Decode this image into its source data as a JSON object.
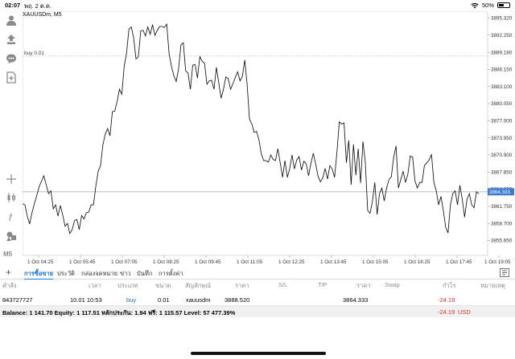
{
  "status": {
    "time": "02:07",
    "date": "พฤ. 2 ต.ค.",
    "battery": "50%",
    "battery_level": 0.5
  },
  "symbol_label": "XAUUSDm, M5",
  "chart_data": {
    "type": "line",
    "y_ticks": [
      "3895.320",
      "3892.250",
      "3889.180",
      "3886.150",
      "3883.100",
      "3880.050",
      "3877.000",
      "3873.950",
      "3870.900",
      "3867.850",
      "3864.800",
      "3861.750",
      "3858.700",
      "3855.650"
    ],
    "ylim": [
      3853.0,
      3896.5
    ],
    "x_ticks": [
      "1 Oct 04:25",
      "1 Oct 05:45",
      "1 Oct 07:05",
      "1 Oct 08:25",
      "1 Oct 09:45",
      "1 Oct 11:05",
      "1 Oct 12:25",
      "1 Oct 13:45",
      "1 Oct 15:05",
      "1 Oct 16:25",
      "1 Oct 17:45",
      "1 Oct 19:05"
    ],
    "entry_line": {
      "label": "buy 0.01",
      "value": 3888.52
    },
    "bid_line": {
      "label": "3864.333",
      "value": 3864.333
    },
    "values": [
      3862.2,
      3862.0,
      3860.0,
      3858.6,
      3860.6,
      3862.2,
      3863.6,
      3865.2,
      3866.2,
      3867.2,
      3865.6,
      3864.0,
      3864.5,
      3861.3,
      3862.0,
      3860.0,
      3861.9,
      3860.2,
      3858.2,
      3858.7,
      3856.9,
      3857.6,
      3859.2,
      3859.4,
      3857.6,
      3860.1,
      3859.5,
      3860.6,
      3860.7,
      3862.0,
      3862.0,
      3865.3,
      3868.0,
      3869.0,
      3872.7,
      3874.6,
      3875.6,
      3874.3,
      3878.6,
      3878.7,
      3880.4,
      3882.6,
      3881.7,
      3886.7,
      3889.0,
      3893.3,
      3893.7,
      3891.8,
      3888.0,
      3888.4,
      3893.0,
      3893.1,
      3892.1,
      3893.7,
      3892.4,
      3894.1,
      3892.2,
      3893.1,
      3893.8,
      3893.8,
      3893.6,
      3894.2,
      3888.9,
      3886.7,
      3885.0,
      3884.0,
      3886.2,
      3890.5,
      3890.9,
      3885.9,
      3885.5,
      3882.6,
      3886.9,
      3887.0,
      3884.6,
      3888.4,
      3887.6,
      3887.2,
      3883.5,
      3884.1,
      3884.2,
      3882.6,
      3886.5,
      3883.8,
      3881.0,
      3882.6,
      3884.8,
      3884.5,
      3882.6,
      3883.6,
      3884.7,
      3885.7,
      3884.1,
      3884.9,
      3887.8,
      3883.5,
      3877.3,
      3876.4,
      3874.9,
      3875.1,
      3873.6,
      3871.1,
      3869.9,
      3869.9,
      3869.6,
      3870.9,
      3870.1,
      3869.9,
      3872.0,
      3869.5,
      3866.9,
      3869.9,
      3866.9,
      3868.4,
      3870.9,
      3868.4,
      3870.0,
      3870.6,
      3868.2,
      3869.8,
      3869.3,
      3867.2,
      3869.4,
      3871.2,
      3869.3,
      3867.1,
      3866.1,
      3866.8,
      3868.5,
      3866.6,
      3869.0,
      3868.4,
      3866.9,
      3871.4,
      3876.8,
      3876.4,
      3876.6,
      3869.5,
      3873.5,
      3865.6,
      3872.8,
      3867.3,
      3872.0,
      3865.9,
      3873.3,
      3869.6,
      3861.0,
      3860.5,
      3862.6,
      3866.0,
      3860.3,
      3864.0,
      3865.0,
      3862.7,
      3865.0,
      3866.5,
      3867.0,
      3870.5,
      3872.5,
      3865.0,
      3866.5,
      3868.0,
      3866.0,
      3867.5,
      3870.7,
      3870.5,
      3866.3,
      3865.0,
      3866.0,
      3866.0,
      3869.0,
      3869.5,
      3870.0,
      3871.0,
      3866.0,
      3864.5,
      3862.0,
      3863.5,
      3861.0,
      3858.0,
      3857.0,
      3862.0,
      3864.0,
      3864.5,
      3862.0,
      3865.5,
      3863.0,
      3859.8,
      3863.0,
      3864.0,
      3862.0,
      3861.5,
      3864.3,
      3864.0
    ]
  },
  "toolbar": [
    {
      "name": "account-icon"
    },
    {
      "name": "trade-icon"
    },
    {
      "name": "chat-icon"
    },
    {
      "name": "new-document-icon"
    },
    {
      "name": "crosshair-icon"
    },
    {
      "name": "candlestick-icon"
    },
    {
      "name": "function-icon"
    },
    {
      "name": "objects-icon"
    },
    {
      "name": "timeframe-label",
      "label": "M5"
    }
  ],
  "tabs": {
    "add": "+",
    "items": [
      "การซื้อขาย",
      "ประวัติ",
      "กล่องจดหมาย",
      "ข่าว",
      "บันทึก",
      "การตั้งค่า"
    ],
    "active": 0
  },
  "table": {
    "headers": [
      "คำสั่ง",
      "เวลา",
      "ประเภท",
      "ขนาด",
      "สัญลักษณ์",
      "ราคา",
      "S/L",
      "T/P",
      "ราคา",
      "Swap",
      "กำไร",
      "หมายเหตุ"
    ],
    "row": [
      "843727727",
      "10.01 10:53",
      "buy",
      "0.01",
      "xauusdm",
      "3888.520",
      "",
      "",
      "3864.333",
      "",
      "-24.19",
      ""
    ]
  },
  "balance": {
    "text": "Balance: 1 141.70 Equity: 1 117.51 หลักประกัน: 1.94 ฟรี: 1 115.57 Level: 57 477.39%",
    "pl": "-24.19",
    "currency": "USD"
  }
}
